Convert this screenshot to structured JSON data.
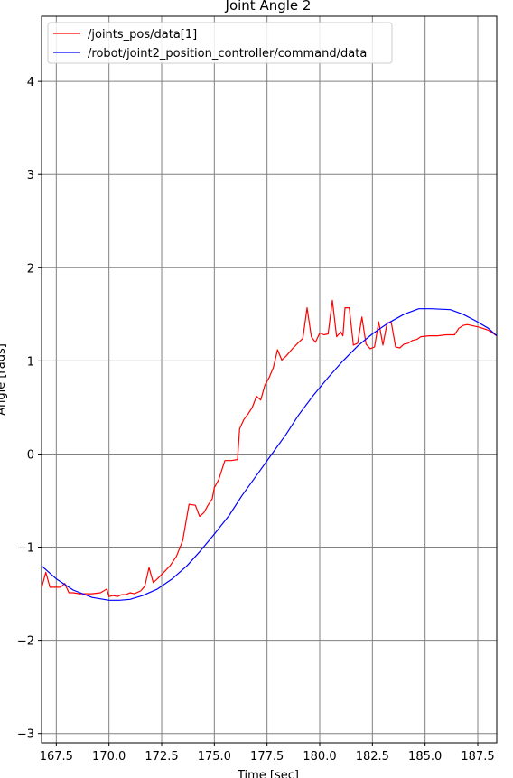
{
  "chart_data": {
    "type": "line",
    "title": "Joint Angle 2",
    "xlabel": "Time [sec]",
    "ylabel": "Angle [rads]",
    "xlim": [
      166.8,
      188.4
    ],
    "ylim": [
      -3.1,
      4.7
    ],
    "xticks": [
      167.5,
      170.0,
      172.5,
      175.0,
      177.5,
      180.0,
      182.5,
      185.0,
      187.5
    ],
    "xtick_labels": [
      "167.5",
      "170.0",
      "172.5",
      "175.0",
      "177.5",
      "180.0",
      "182.5",
      "185.0",
      "187.5"
    ],
    "yticks": [
      -3,
      -2,
      -1,
      0,
      1,
      2,
      3,
      4
    ],
    "ytick_labels": [
      "−3",
      "−2",
      "−1",
      "0",
      "1",
      "2",
      "3",
      "4"
    ],
    "grid": true,
    "legend_position": "upper-left",
    "series": [
      {
        "name": "/joints_pos/data[1]",
        "color": "#ff0000",
        "x": [
          166.8,
          167.0,
          167.2,
          167.4,
          167.7,
          167.9,
          168.1,
          168.3,
          168.6,
          168.8,
          169.2,
          169.6,
          169.9,
          170.0,
          170.2,
          170.4,
          170.6,
          170.8,
          171.0,
          171.2,
          171.5,
          171.7,
          171.9,
          172.1,
          172.3,
          172.6,
          172.9,
          173.2,
          173.5,
          173.8,
          174.1,
          174.3,
          174.5,
          174.7,
          174.9,
          175.0,
          175.2,
          175.5,
          175.8,
          176.1,
          176.2,
          176.4,
          176.6,
          176.8,
          177.0,
          177.2,
          177.4,
          177.6,
          177.8,
          178.0,
          178.2,
          178.4,
          178.7,
          179.0,
          179.2,
          179.4,
          179.6,
          179.8,
          180.0,
          180.2,
          180.4,
          180.6,
          180.8,
          181.0,
          181.1,
          181.2,
          181.4,
          181.6,
          181.8,
          182.0,
          182.2,
          182.4,
          182.6,
          182.8,
          183.0,
          183.2,
          183.4,
          183.6,
          183.8,
          184.0,
          184.2,
          184.4,
          184.6,
          184.8,
          185.2,
          185.6,
          186.0,
          186.4,
          186.6,
          186.8,
          187.0,
          187.2,
          187.6,
          188.0,
          188.4
        ],
        "y": [
          -1.44,
          -1.27,
          -1.43,
          -1.43,
          -1.43,
          -1.39,
          -1.49,
          -1.49,
          -1.5,
          -1.5,
          -1.5,
          -1.49,
          -1.45,
          -1.53,
          -1.52,
          -1.53,
          -1.51,
          -1.51,
          -1.49,
          -1.5,
          -1.47,
          -1.42,
          -1.22,
          -1.38,
          -1.34,
          -1.27,
          -1.2,
          -1.1,
          -0.93,
          -0.54,
          -0.55,
          -0.67,
          -0.63,
          -0.55,
          -0.48,
          -0.36,
          -0.28,
          -0.07,
          -0.07,
          -0.06,
          0.27,
          0.37,
          0.43,
          0.5,
          0.62,
          0.58,
          0.74,
          0.82,
          0.93,
          1.12,
          1.01,
          1.05,
          1.13,
          1.2,
          1.24,
          1.57,
          1.26,
          1.2,
          1.3,
          1.28,
          1.29,
          1.65,
          1.26,
          1.31,
          1.27,
          1.57,
          1.57,
          1.17,
          1.19,
          1.47,
          1.18,
          1.13,
          1.15,
          1.42,
          1.17,
          1.41,
          1.41,
          1.15,
          1.14,
          1.18,
          1.19,
          1.22,
          1.23,
          1.26,
          1.27,
          1.27,
          1.28,
          1.28,
          1.35,
          1.38,
          1.39,
          1.38,
          1.36,
          1.33,
          1.27
        ]
      },
      {
        "name": "/robot/joint2_position_controller/command/data",
        "color": "#0000ff",
        "x": [
          166.8,
          167.5,
          168.3,
          169.2,
          170.0,
          170.5,
          171.0,
          171.6,
          172.3,
          173.0,
          173.7,
          174.3,
          175.0,
          175.7,
          176.3,
          177.0,
          177.7,
          178.4,
          179.0,
          179.7,
          180.4,
          181.1,
          181.8,
          182.5,
          183.2,
          184.0,
          184.7,
          185.3,
          186.2,
          186.8,
          187.4,
          188.0,
          188.4
        ],
        "y": [
          -1.2,
          -1.34,
          -1.46,
          -1.54,
          -1.57,
          -1.57,
          -1.56,
          -1.52,
          -1.45,
          -1.34,
          -1.2,
          -1.05,
          -0.86,
          -0.66,
          -0.45,
          -0.23,
          -0.01,
          0.21,
          0.42,
          0.63,
          0.82,
          1.0,
          1.16,
          1.29,
          1.4,
          1.5,
          1.56,
          1.56,
          1.55,
          1.5,
          1.43,
          1.35,
          1.27
        ]
      }
    ]
  }
}
